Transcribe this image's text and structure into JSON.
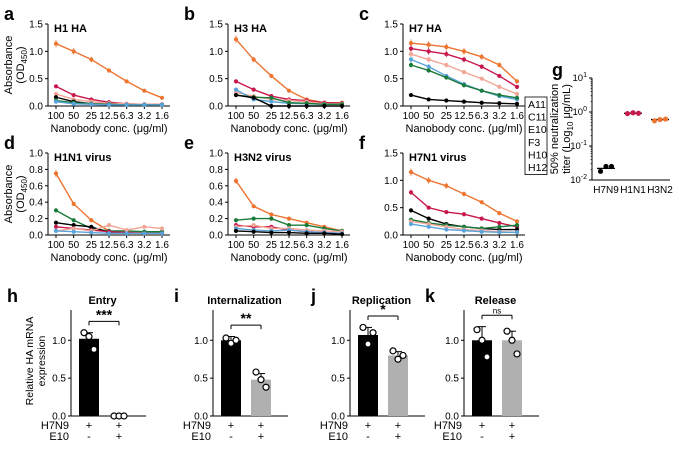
{
  "colors": {
    "A11": "#c8174a",
    "C11": "#000000",
    "E10": "#ee7430",
    "F3": "#5aa4dc",
    "H10": "#f2a596",
    "H12": "#1a7a3a",
    "gray": "#b0b0b0"
  },
  "legend": {
    "entries": [
      "A11",
      "C11",
      "E10",
      "F3",
      "H10",
      "H12"
    ]
  },
  "shared_axes": {
    "ylabel_line1": "Absorbance",
    "ylabel_line2": "(OD",
    "ylabel_sub": "450",
    "ylabel_close": ")",
    "xlabel": "Nanobody conc. (μg/ml)",
    "x_ticks": [
      "100",
      "50",
      "25",
      "12.5",
      "6.3",
      "3.2",
      "1.6"
    ]
  },
  "chart_data": [
    {
      "id": "a",
      "letter": "a",
      "type": "line",
      "title": "H1 HA",
      "xlabel": "Nanobody conc. (μg/ml)",
      "ylabel": "Absorbance (OD450)",
      "categories": [
        "100",
        "50",
        "25",
        "12.5",
        "6.3",
        "3.2",
        "1.6"
      ],
      "ylim": [
        0,
        1.5
      ],
      "yticks": [
        "0.0",
        "0.5",
        "1.0",
        "1.5"
      ],
      "show_ylabel": true,
      "series": [
        {
          "name": "E10",
          "values": [
            1.14,
            1.0,
            0.85,
            0.65,
            0.45,
            0.28,
            0.15
          ]
        },
        {
          "name": "A11",
          "values": [
            0.36,
            0.2,
            0.12,
            0.07,
            0.04,
            0.03,
            0.03
          ]
        },
        {
          "name": "H10",
          "values": [
            0.22,
            0.12,
            0.08,
            0.05,
            0.04,
            0.03,
            0.03
          ]
        },
        {
          "name": "C11",
          "values": [
            0.16,
            0.08,
            0.04,
            0.03,
            0.02,
            0.02,
            0.02
          ]
        },
        {
          "name": "H12",
          "values": [
            0.1,
            0.06,
            0.04,
            0.03,
            0.02,
            0.02,
            0.02
          ]
        },
        {
          "name": "F3",
          "values": [
            0.08,
            0.04,
            0.03,
            0.02,
            0.02,
            0.02,
            0.02
          ]
        }
      ]
    },
    {
      "id": "b",
      "letter": "b",
      "type": "line",
      "title": "H3 HA",
      "xlabel": "Nanobody conc. (μg/ml)",
      "ylabel": "",
      "categories": [
        "100",
        "50",
        "25",
        "12.5",
        "6.3",
        "3.2",
        "1.6"
      ],
      "ylim": [
        0,
        1.5
      ],
      "yticks": [
        "0.0",
        "0.5",
        "1.0",
        "1.5"
      ],
      "show_ylabel": false,
      "series": [
        {
          "name": "E10",
          "values": [
            1.22,
            0.85,
            0.55,
            0.28,
            0.12,
            0.06,
            0.06
          ]
        },
        {
          "name": "A11",
          "values": [
            0.45,
            0.3,
            0.18,
            0.12,
            0.1,
            0.06,
            0.05
          ]
        },
        {
          "name": "H10",
          "values": [
            0.25,
            0.18,
            0.12,
            0.1,
            0.08,
            0.04,
            0.04
          ]
        },
        {
          "name": "F3",
          "values": [
            0.3,
            0.12,
            0.08,
            0.05,
            0.04,
            0.03,
            0.03
          ]
        },
        {
          "name": "H12",
          "values": [
            0.2,
            0.16,
            0.15,
            0.06,
            0.05,
            0.03,
            0.03
          ]
        },
        {
          "name": "C11",
          "values": [
            0.2,
            0.15,
            0.0,
            0.0,
            0.0,
            0.0,
            0.0
          ]
        }
      ]
    },
    {
      "id": "c",
      "letter": "c",
      "type": "line",
      "title": "H7 HA",
      "xlabel": "Nanobody conc. (μg/ml)",
      "ylabel": "",
      "categories": [
        "100",
        "50",
        "25",
        "12.5",
        "6.3",
        "3.2",
        "1.6"
      ],
      "ylim": [
        0,
        1.5
      ],
      "yticks": [
        "0.0",
        "0.5",
        "1.0",
        "1.5"
      ],
      "show_ylabel": false,
      "series": [
        {
          "name": "E10",
          "values": [
            1.15,
            1.12,
            1.08,
            1.0,
            0.9,
            0.75,
            0.45
          ]
        },
        {
          "name": "A11",
          "values": [
            1.05,
            1.0,
            0.95,
            0.85,
            0.72,
            0.55,
            0.35
          ]
        },
        {
          "name": "H10",
          "values": [
            0.95,
            0.85,
            0.75,
            0.62,
            0.5,
            0.35,
            0.22
          ]
        },
        {
          "name": "F3",
          "values": [
            0.85,
            0.72,
            0.55,
            0.4,
            0.28,
            0.18,
            0.12
          ]
        },
        {
          "name": "H12",
          "values": [
            0.75,
            0.65,
            0.52,
            0.38,
            0.28,
            0.2,
            0.15
          ]
        },
        {
          "name": "C11",
          "values": [
            0.2,
            0.12,
            0.1,
            0.08,
            0.06,
            0.05,
            0.04
          ]
        }
      ]
    },
    {
      "id": "d",
      "letter": "d",
      "type": "line",
      "title": "H1N1 virus",
      "xlabel": "Nanobody conc. (μg/ml)",
      "ylabel": "Absorbance (OD450)",
      "categories": [
        "100",
        "50",
        "25",
        "12.5",
        "6.3",
        "3.2",
        "1.6"
      ],
      "ylim": [
        0,
        1.0
      ],
      "yticks": [
        "0.0",
        "0.2",
        "0.4",
        "0.6",
        "0.8",
        "1.0"
      ],
      "show_ylabel": true,
      "series": [
        {
          "name": "E10",
          "values": [
            0.75,
            0.38,
            0.18,
            0.05,
            0.04,
            0.03,
            0.03
          ]
        },
        {
          "name": "H12",
          "values": [
            0.3,
            0.18,
            0.08,
            0.05,
            0.05,
            0.04,
            0.04
          ]
        },
        {
          "name": "C11",
          "values": [
            0.15,
            0.12,
            0.1,
            0.03,
            0.02,
            0.02,
            0.02
          ]
        },
        {
          "name": "A11",
          "values": [
            0.1,
            0.08,
            0.06,
            0.04,
            0.03,
            0.02,
            0.02
          ]
        },
        {
          "name": "H10",
          "values": [
            0.05,
            0.08,
            0.05,
            0.12,
            0.06,
            0.1,
            0.08
          ]
        },
        {
          "name": "F3",
          "values": [
            0.05,
            0.04,
            0.03,
            0.02,
            0.02,
            0.02,
            0.02
          ]
        }
      ]
    },
    {
      "id": "e",
      "letter": "e",
      "type": "line",
      "title": "H3N2 virus",
      "xlabel": "Nanobody conc. (μg/ml)",
      "ylabel": "",
      "categories": [
        "100",
        "50",
        "25",
        "12.5",
        "6.3",
        "3.2",
        "1.6"
      ],
      "ylim": [
        0,
        1.0
      ],
      "yticks": [
        "0.0",
        "0.2",
        "0.4",
        "0.6",
        "0.8",
        "1.0"
      ],
      "show_ylabel": false,
      "series": [
        {
          "name": "E10",
          "values": [
            0.66,
            0.35,
            0.25,
            0.2,
            0.15,
            0.1,
            0.05
          ]
        },
        {
          "name": "H12",
          "values": [
            0.18,
            0.2,
            0.2,
            0.12,
            0.12,
            0.08,
            0.05
          ]
        },
        {
          "name": "A11",
          "values": [
            0.12,
            0.1,
            0.1,
            0.06,
            0.04,
            0.03,
            0.02
          ]
        },
        {
          "name": "H10",
          "values": [
            0.1,
            0.12,
            0.08,
            0.08,
            0.06,
            0.05,
            0.04
          ]
        },
        {
          "name": "F3",
          "values": [
            0.08,
            0.06,
            0.05,
            0.06,
            0.04,
            0.03,
            0.02
          ]
        },
        {
          "name": "C11",
          "values": [
            0.05,
            0.04,
            0.03,
            0.03,
            0.02,
            0.02,
            0.01
          ]
        }
      ]
    },
    {
      "id": "f",
      "letter": "f",
      "type": "line",
      "title": "H7N1 virus",
      "xlabel": "Nanobody conc. (μg/ml)",
      "ylabel": "",
      "categories": [
        "100",
        "50",
        "25",
        "12.5",
        "6.3",
        "3.2",
        "1.6"
      ],
      "ylim": [
        0,
        1.5
      ],
      "yticks": [
        "0.0",
        "0.5",
        "1.0",
        "1.5"
      ],
      "show_ylabel": false,
      "series": [
        {
          "name": "E10",
          "values": [
            1.15,
            1.0,
            0.9,
            0.75,
            0.6,
            0.4,
            0.25
          ]
        },
        {
          "name": "A11",
          "values": [
            0.78,
            0.5,
            0.42,
            0.38,
            0.3,
            0.22,
            0.15
          ]
        },
        {
          "name": "C11",
          "values": [
            0.45,
            0.3,
            0.2,
            0.15,
            0.12,
            0.1,
            0.1
          ]
        },
        {
          "name": "H12",
          "values": [
            0.28,
            0.22,
            0.18,
            0.15,
            0.12,
            0.15,
            0.18
          ]
        },
        {
          "name": "H10",
          "values": [
            0.25,
            0.2,
            0.15,
            0.1,
            0.08,
            0.06,
            0.05
          ]
        },
        {
          "name": "F3",
          "values": [
            0.2,
            0.15,
            0.1,
            0.08,
            0.06,
            0.05,
            0.05
          ]
        }
      ]
    },
    {
      "id": "g",
      "letter": "g",
      "type": "scatter",
      "ylabel_line1": "50% neutralization",
      "ylabel_line2": "titer (Log",
      "ylabel_sub": "10",
      "ylabel_close": " μg/mL)",
      "ylim_log": [
        -2,
        1
      ],
      "yticks": [
        {
          "base": "10",
          "exp": "1",
          "log": 1
        },
        {
          "base": "10",
          "exp": "0",
          "log": 0
        },
        {
          "base": "10",
          "exp": "-1",
          "log": -1
        },
        {
          "base": "10",
          "exp": "-2",
          "log": -2
        }
      ],
      "categories": [
        "H7N9",
        "H1N1",
        "H3N2"
      ],
      "groups": [
        {
          "category": "H7N9",
          "color": "#000000",
          "points": [
            0.018,
            0.025,
            0.025
          ],
          "median": 0.022
        },
        {
          "category": "H1N1",
          "color": "#c8174a",
          "points": [
            0.9,
            0.95,
            0.92
          ],
          "median": 0.92
        },
        {
          "category": "H3N2",
          "color": "#ee7430",
          "points": [
            0.55,
            0.6,
            0.62
          ],
          "median": 0.6
        }
      ]
    },
    {
      "id": "h",
      "letter": "h",
      "type": "bar",
      "title": "Entry",
      "ylabel": "Relative HA mRNA expression",
      "ylabel_line1": "Relative HA mRNA",
      "ylabel_line2": "expression",
      "show_ylabel": true,
      "ylim": [
        0,
        1.4
      ],
      "yticks": [
        "0.0",
        "0.5",
        "1.0"
      ],
      "row_labels": [
        "H7N9",
        "E10"
      ],
      "conditions": [
        [
          "+",
          "-"
        ],
        [
          "+",
          "+"
        ]
      ],
      "bars": [
        {
          "value": 1.02,
          "error": 0.08,
          "color": "#000000",
          "points": [
            1.1,
            1.05,
            0.88
          ]
        },
        {
          "value": 0.0,
          "error": 0.0,
          "color": "#b0b0b0",
          "points": [
            0.0,
            0.0,
            0.0
          ]
        }
      ],
      "significance": "***"
    },
    {
      "id": "i",
      "letter": "i",
      "type": "bar",
      "title": "Internalization",
      "show_ylabel": false,
      "ylim": [
        0,
        1.4
      ],
      "yticks": [
        "0.0",
        "0.5",
        "1.0"
      ],
      "row_labels": [
        "H7N9",
        "E10"
      ],
      "conditions": [
        [
          "+",
          "-"
        ],
        [
          "+",
          "+"
        ]
      ],
      "bars": [
        {
          "value": 1.0,
          "error": 0.05,
          "color": "#000000",
          "points": [
            1.03,
            0.96,
            1.0
          ]
        },
        {
          "value": 0.48,
          "error": 0.08,
          "color": "#b0b0b0",
          "points": [
            0.58,
            0.48,
            0.38
          ]
        }
      ],
      "significance": "**"
    },
    {
      "id": "j",
      "letter": "j",
      "type": "bar",
      "title": "Replication",
      "show_ylabel": false,
      "ylim": [
        0,
        1.4
      ],
      "yticks": [
        "0.0",
        "0.5",
        "1.0"
      ],
      "row_labels": [
        "H7N9",
        "E10"
      ],
      "conditions": [
        [
          "+",
          "-"
        ],
        [
          "+",
          "+"
        ]
      ],
      "bars": [
        {
          "value": 1.07,
          "error": 0.1,
          "color": "#000000",
          "points": [
            1.17,
            0.95,
            1.1
          ]
        },
        {
          "value": 0.8,
          "error": 0.05,
          "color": "#b0b0b0",
          "points": [
            0.86,
            0.75,
            0.8
          ]
        }
      ],
      "significance": "*"
    },
    {
      "id": "k",
      "letter": "k",
      "type": "bar",
      "title": "Release",
      "show_ylabel": false,
      "ylim": [
        0,
        1.4
      ],
      "yticks": [
        "0.0",
        "0.5",
        "1.0"
      ],
      "row_labels": [
        "H7N9",
        "E10"
      ],
      "conditions": [
        [
          "+",
          "-"
        ],
        [
          "+",
          "+"
        ]
      ],
      "bars": [
        {
          "value": 1.0,
          "error": 0.18,
          "color": "#000000",
          "points": [
            1.14,
            1.0,
            0.78
          ]
        },
        {
          "value": 1.0,
          "error": 0.12,
          "color": "#b0b0b0",
          "points": [
            1.12,
            1.0,
            0.82
          ]
        }
      ],
      "significance": "ns"
    }
  ]
}
